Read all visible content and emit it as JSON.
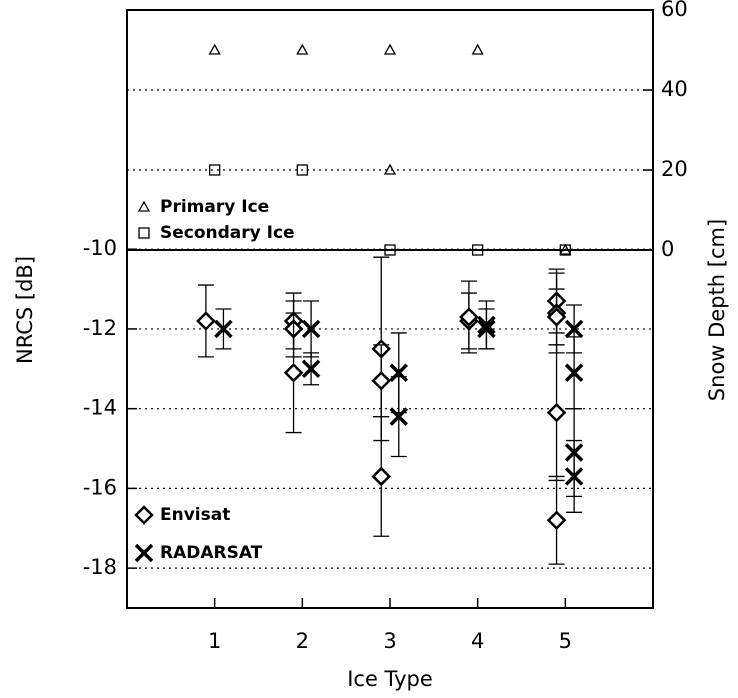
{
  "chart_data": {
    "type": "scatter",
    "xlabel": "Ice Type",
    "ylabel": "NRCS [dB]",
    "y2label": "Snow Depth [cm]",
    "xlim": [
      0,
      6
    ],
    "xticks": [
      1,
      2,
      3,
      4,
      5
    ],
    "ylim": [
      -19,
      -4
    ],
    "yticks": [
      -18,
      -16,
      -14,
      -12,
      -10
    ],
    "y2lim": [
      -89.5,
      60
    ],
    "y2ticks": [
      0,
      20,
      40,
      60
    ],
    "grid": true,
    "color": "#000000",
    "series": [
      {
        "name": "Primary Ice",
        "marker": "triangle",
        "axis": "y2",
        "x": [
          1,
          2,
          3,
          3,
          4,
          5
        ],
        "values": [
          50,
          50,
          50,
          20,
          50,
          0
        ]
      },
      {
        "name": "Secondary Ice",
        "marker": "square",
        "axis": "y2",
        "x": [
          1,
          2,
          3,
          4,
          5
        ],
        "values": [
          20,
          20,
          0,
          0,
          0
        ]
      },
      {
        "name": "Envisat",
        "marker": "diamond",
        "x": [
          0.9,
          1.9,
          1.9,
          1.9,
          2.9,
          2.9,
          2.9,
          3.9,
          3.9,
          4.9,
          4.9,
          4.9,
          4.9,
          4.9
        ],
        "values": [
          -11.8,
          -11.8,
          -12.0,
          -13.1,
          -12.5,
          -13.3,
          -15.7,
          -11.8,
          -11.7,
          -11.3,
          -11.6,
          -11.7,
          -14.1,
          -16.8
        ],
        "errors": [
          0.9,
          0.7,
          0.7,
          1.5,
          2.3,
          0.9,
          1.5,
          0.7,
          0.9,
          0.8,
          1.0,
          0.7,
          1.7,
          1.1
        ]
      },
      {
        "name": "RADARSAT",
        "marker": "x",
        "x": [
          1.1,
          2.1,
          2.1,
          3.1,
          3.1,
          4.1,
          4.1,
          5.1,
          5.1,
          5.1,
          5.1
        ],
        "values": [
          -12.0,
          -12.0,
          -13.0,
          -13.1,
          -14.2,
          -11.9,
          -12.0,
          -12.0,
          -13.1,
          -15.1,
          -15.7
        ],
        "errors": [
          0.5,
          0.7,
          0.4,
          1.0,
          1.0,
          0.6,
          0.5,
          0.6,
          0.9,
          1.1,
          0.9
        ]
      }
    ]
  }
}
